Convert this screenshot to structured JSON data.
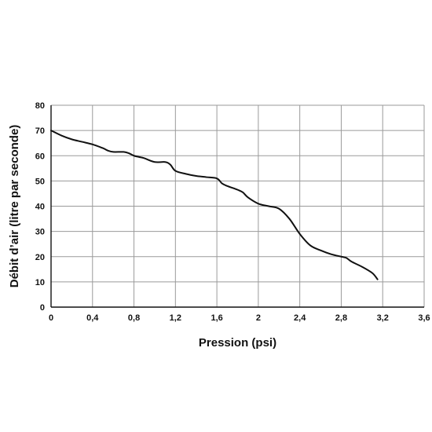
{
  "chart_data": {
    "type": "line",
    "xlabel": "Pression (psi)",
    "ylabel": "Débit d’air (litre par seconde)",
    "xlim": [
      0,
      3.6
    ],
    "ylim": [
      0,
      80
    ],
    "x_ticks": [
      "0",
      "0,4",
      "0,8",
      "1,2",
      "1,6",
      "2",
      "2,4",
      "2,8",
      "3,2",
      "3,6"
    ],
    "y_ticks": [
      "0",
      "10",
      "20",
      "30",
      "40",
      "50",
      "60",
      "70",
      "80"
    ],
    "grid": true,
    "series": [
      {
        "x": [
          0,
          0.1,
          0.2,
          0.3,
          0.4,
          0.5,
          0.55,
          0.6,
          0.7,
          0.75,
          0.8,
          0.85,
          0.9,
          1.0,
          1.1,
          1.15,
          1.2,
          1.3,
          1.4,
          1.5,
          1.6,
          1.65,
          1.7,
          1.8,
          1.85,
          1.9,
          2.0,
          2.1,
          2.2,
          2.3,
          2.4,
          2.5,
          2.6,
          2.7,
          2.8,
          2.85,
          2.9,
          3.0,
          3.1,
          3.15
        ],
        "y": [
          70,
          68,
          66.5,
          65.5,
          64.5,
          63,
          62,
          61.5,
          61.5,
          61,
          60,
          59.5,
          59,
          57.5,
          57.5,
          56.5,
          54,
          52.8,
          52,
          51.5,
          51,
          49,
          48,
          46.5,
          45.5,
          43.5,
          41,
          40,
          39,
          35,
          29,
          24.5,
          22.5,
          21,
          20,
          19.5,
          18,
          16,
          13.5,
          11
        ]
      }
    ]
  }
}
